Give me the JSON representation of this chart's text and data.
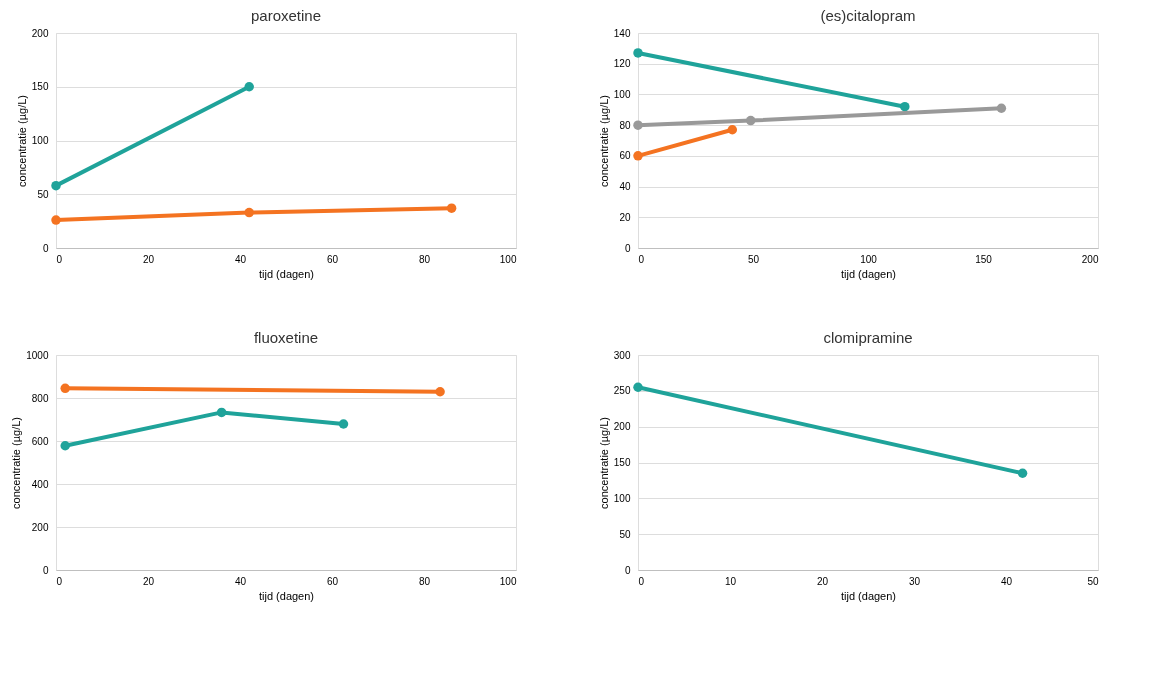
{
  "chart_data": [
    {
      "type": "line",
      "title": "paroxetine",
      "xlabel": "tijd (dagen)",
      "ylabel": "concentratie (µg/L)",
      "xlim": [
        0,
        100
      ],
      "xticks": [
        0,
        20,
        40,
        60,
        80,
        100
      ],
      "ylim": [
        0,
        200
      ],
      "yticks": [
        0,
        50,
        100,
        150,
        200
      ],
      "grid": "y",
      "marker": "circle",
      "line_style": "solid",
      "series": [
        {
          "color": "#1fa39a",
          "x": [
            0,
            42
          ],
          "values": [
            58,
            150
          ]
        },
        {
          "color": "#f47321",
          "x": [
            0,
            42,
            86
          ],
          "values": [
            26,
            33,
            37
          ]
        }
      ]
    },
    {
      "type": "line",
      "title": "(es)citalopram",
      "xlabel": "tijd (dagen)",
      "ylabel": "concentratie (µg/L)",
      "xlim": [
        0,
        200
      ],
      "xticks": [
        0,
        50,
        100,
        150,
        200
      ],
      "ylim": [
        0,
        140
      ],
      "yticks": [
        0,
        20,
        40,
        60,
        80,
        100,
        120,
        140
      ],
      "grid": "y",
      "marker": "circle",
      "line_style": "solid",
      "series": [
        {
          "color": "#1fa39a",
          "x": [
            0,
            116
          ],
          "values": [
            127,
            92
          ]
        },
        {
          "color": "#999999",
          "x": [
            0,
            49,
            158
          ],
          "values": [
            80,
            83,
            91
          ]
        },
        {
          "color": "#f47321",
          "x": [
            0,
            41
          ],
          "values": [
            60,
            77
          ]
        }
      ]
    },
    {
      "type": "line",
      "title": "fluoxetine",
      "xlabel": "tijd (dagen)",
      "ylabel": "concentratie (µg/L)",
      "xlim": [
        0,
        100
      ],
      "xticks": [
        0,
        20,
        40,
        60,
        80,
        100
      ],
      "ylim": [
        0,
        1000
      ],
      "yticks": [
        0,
        200,
        400,
        600,
        800,
        1000
      ],
      "grid": "y",
      "marker": "circle",
      "line_style": "solid",
      "series": [
        {
          "color": "#f47321",
          "x": [
            2,
            83.5
          ],
          "values": [
            845,
            829
          ]
        },
        {
          "color": "#1fa39a",
          "x": [
            2,
            36,
            62.5
          ],
          "values": [
            578,
            733,
            679
          ]
        }
      ]
    },
    {
      "type": "line",
      "title": "clomipramine",
      "xlabel": "tijd (dagen)",
      "ylabel": "concentratie (µg/L)",
      "xlim": [
        0,
        50
      ],
      "xticks": [
        0,
        10,
        20,
        30,
        40,
        50
      ],
      "ylim": [
        0,
        300
      ],
      "yticks": [
        0,
        50,
        100,
        150,
        200,
        250,
        300
      ],
      "grid": "y",
      "marker": "circle",
      "line_style": "solid",
      "series": [
        {
          "color": "#1fa39a",
          "x": [
            0,
            41.8
          ],
          "values": [
            255,
            135
          ]
        }
      ]
    }
  ]
}
